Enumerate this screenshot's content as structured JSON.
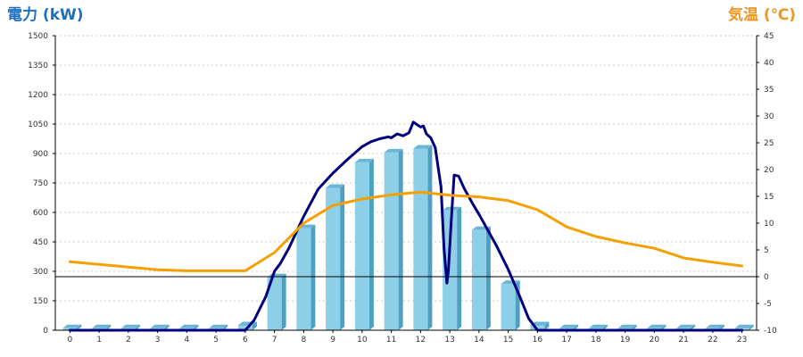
{
  "chart_data": {
    "type": "bar+line",
    "left_axis": {
      "label": "電力 (kW)",
      "color": "#1f6fbf",
      "range": [
        0,
        1500
      ],
      "ticks": [
        "0",
        "150",
        "300",
        "450",
        "600",
        "750",
        "900",
        "1050",
        "1200",
        "1350",
        "1500"
      ]
    },
    "right_axis": {
      "label": "気温 (℃)",
      "color": "#f0961e",
      "range": [
        -10,
        45
      ],
      "ticks": [
        "-10",
        "-5",
        "0",
        "5",
        "10",
        "15",
        "20",
        "25",
        "30",
        "35",
        "40",
        "45"
      ]
    },
    "categories": [
      "0",
      "1",
      "2",
      "3",
      "4",
      "5",
      "6",
      "7",
      "8",
      "9",
      "10",
      "11",
      "12",
      "13",
      "14",
      "15",
      "16",
      "17",
      "18",
      "19",
      "20",
      "21",
      "22",
      "23"
    ],
    "grid": true,
    "series": [
      {
        "kind": "bar",
        "axis": "left",
        "color": "#8ecfe8",
        "values": [
          10,
          10,
          10,
          10,
          10,
          10,
          25,
          270,
          520,
          725,
          855,
          905,
          925,
          610,
          510,
          235,
          25,
          10,
          10,
          10,
          10,
          10,
          10,
          10
        ]
      },
      {
        "kind": "line",
        "axis": "left",
        "color": "#00007f",
        "points": [
          [
            0,
            0
          ],
          [
            5,
            0
          ],
          [
            6,
            0
          ],
          [
            6.3,
            50
          ],
          [
            6.7,
            170
          ],
          [
            7,
            300
          ],
          [
            7.2,
            340
          ],
          [
            7.5,
            420
          ],
          [
            8,
            580
          ],
          [
            8.5,
            720
          ],
          [
            9,
            800
          ],
          [
            9.5,
            870
          ],
          [
            10,
            935
          ],
          [
            10.3,
            960
          ],
          [
            10.6,
            975
          ],
          [
            10.9,
            985
          ],
          [
            11,
            980
          ],
          [
            11.2,
            1000
          ],
          [
            11.4,
            990
          ],
          [
            11.6,
            1005
          ],
          [
            11.75,
            1060
          ],
          [
            11.9,
            1045
          ],
          [
            12,
            1035
          ],
          [
            12.1,
            1040
          ],
          [
            12.2,
            1000
          ],
          [
            12.35,
            980
          ],
          [
            12.5,
            930
          ],
          [
            12.7,
            730
          ],
          [
            12.8,
            420
          ],
          [
            12.9,
            240
          ],
          [
            12.95,
            300
          ],
          [
            13.05,
            560
          ],
          [
            13.15,
            790
          ],
          [
            13.3,
            785
          ],
          [
            13.5,
            720
          ],
          [
            13.8,
            640
          ],
          [
            14,
            590
          ],
          [
            14.3,
            510
          ],
          [
            14.6,
            430
          ],
          [
            15,
            310
          ],
          [
            15.4,
            170
          ],
          [
            15.7,
            60
          ],
          [
            16,
            0
          ],
          [
            23,
            0
          ]
        ]
      },
      {
        "kind": "line",
        "axis": "right",
        "color": "#f5a000",
        "points": [
          [
            0,
            2.8
          ],
          [
            1,
            2.3
          ],
          [
            2,
            1.8
          ],
          [
            3,
            1.3
          ],
          [
            4,
            1.1
          ],
          [
            5,
            1.1
          ],
          [
            6,
            1.1
          ],
          [
            7,
            4.5
          ],
          [
            8,
            10
          ],
          [
            9,
            13.3
          ],
          [
            10,
            14.5
          ],
          [
            11,
            15.3
          ],
          [
            12,
            15.8
          ],
          [
            13,
            15.2
          ],
          [
            14,
            14.9
          ],
          [
            15,
            14.2
          ],
          [
            16,
            12.5
          ],
          [
            17,
            9.3
          ],
          [
            18,
            7.5
          ],
          [
            19,
            6.3
          ],
          [
            20,
            5.3
          ],
          [
            21,
            3.5
          ],
          [
            22,
            2.7
          ],
          [
            23,
            2.0
          ]
        ]
      }
    ],
    "reference_lines": [
      {
        "axis": "right",
        "value": 0,
        "color": "#000000"
      }
    ]
  }
}
